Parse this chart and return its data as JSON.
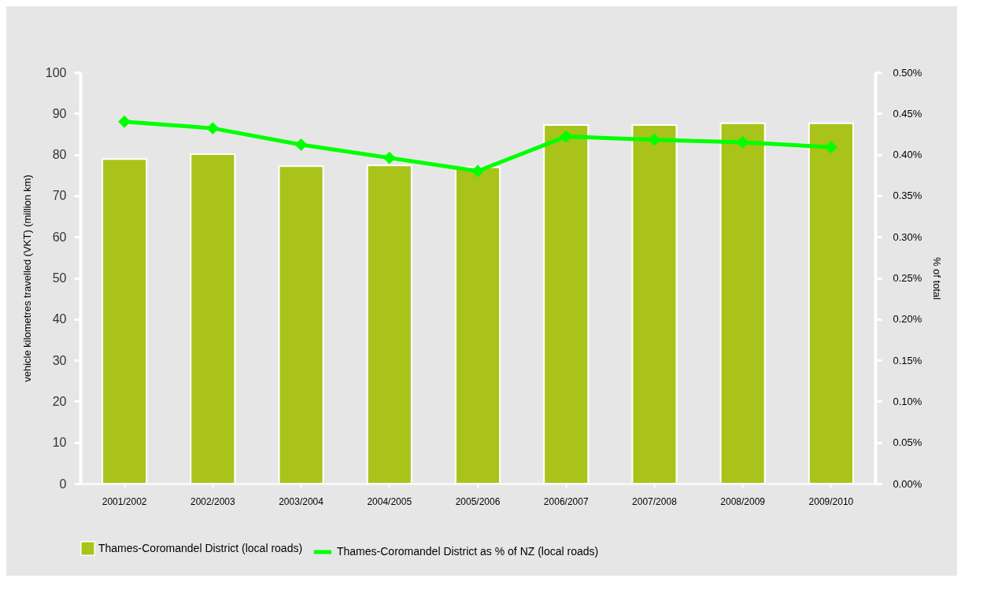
{
  "chart_data": {
    "type": "bar",
    "xlabel": null,
    "ylabel": "vehicle kilometres travelled (VKT) (million km)",
    "y2label": "% of total",
    "categories": [
      "2001/2002",
      "2002/2003",
      "2003/2004",
      "2004/2005",
      "2005/2006",
      "2006/2007",
      "2007/2008",
      "2008/2009",
      "2009/2010"
    ],
    "series": [
      {
        "name": "Thames-Coromandel  District (local roads)",
        "color": "#a9c31a",
        "values": [
          78.9,
          80.1,
          77.2,
          77.4,
          76.9,
          87.2,
          87.2,
          87.6,
          87.6
        ]
      },
      {
        "name": "Thames-Coromandel  District as % of NZ (local roads)",
        "type": "line",
        "axis": "y2",
        "color": "#00ff00",
        "marker": "diamond",
        "values": [
          0.44,
          0.432,
          0.412,
          0.396,
          0.38,
          0.422,
          0.418,
          0.415,
          0.409
        ]
      }
    ],
    "ylim": [
      0,
      100
    ],
    "yticks": [
      0,
      10,
      20,
      30,
      40,
      50,
      60,
      70,
      80,
      90,
      100
    ],
    "y2lim": [
      0,
      0.5
    ],
    "y2ticks": [
      {
        "value": 0,
        "label": "0.00%"
      },
      {
        "value": 0.05,
        "label": "0.05%"
      },
      {
        "value": 0.1,
        "label": "0.10%"
      },
      {
        "value": 0.15,
        "label": "0.15%"
      },
      {
        "value": 0.2,
        "label": "0.20%"
      },
      {
        "value": 0.25,
        "label": "0.25%"
      },
      {
        "value": 0.3,
        "label": "0.30%"
      },
      {
        "value": 0.35,
        "label": "0.35%"
      },
      {
        "value": 0.4,
        "label": "0.40%"
      },
      {
        "value": 0.45,
        "label": "0.45%"
      },
      {
        "value": 0.5,
        "label": "0.50%"
      }
    ],
    "grid": false,
    "legend": "bottom"
  }
}
